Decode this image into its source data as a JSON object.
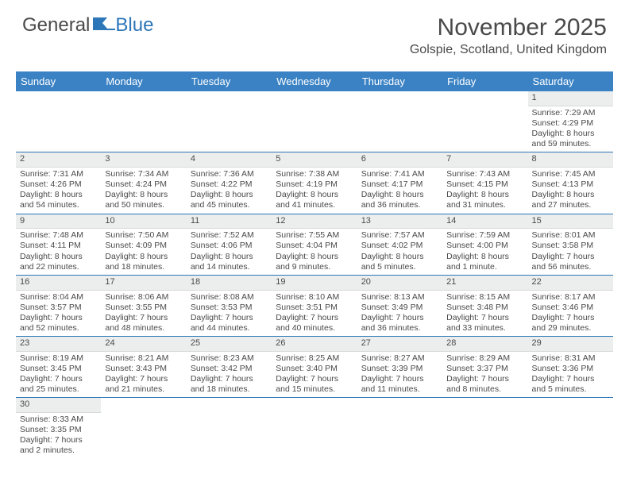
{
  "logo": {
    "text1": "General",
    "text2": "Blue"
  },
  "title": "November 2025",
  "location": "Golspie, Scotland, United Kingdom",
  "colors": {
    "header_bg": "#3a82c4",
    "header_text": "#ffffff",
    "daynum_bg": "#eceded",
    "separator": "#2d76b8",
    "body_text": "#4a4a4a",
    "logo_blue": "#2d76b8"
  },
  "day_headers": [
    "Sunday",
    "Monday",
    "Tuesday",
    "Wednesday",
    "Thursday",
    "Friday",
    "Saturday"
  ],
  "weeks": [
    [
      null,
      null,
      null,
      null,
      null,
      null,
      {
        "n": "1",
        "sr": "Sunrise: 7:29 AM",
        "ss": "Sunset: 4:29 PM",
        "d1": "Daylight: 8 hours",
        "d2": "and 59 minutes."
      }
    ],
    [
      {
        "n": "2",
        "sr": "Sunrise: 7:31 AM",
        "ss": "Sunset: 4:26 PM",
        "d1": "Daylight: 8 hours",
        "d2": "and 54 minutes."
      },
      {
        "n": "3",
        "sr": "Sunrise: 7:34 AM",
        "ss": "Sunset: 4:24 PM",
        "d1": "Daylight: 8 hours",
        "d2": "and 50 minutes."
      },
      {
        "n": "4",
        "sr": "Sunrise: 7:36 AM",
        "ss": "Sunset: 4:22 PM",
        "d1": "Daylight: 8 hours",
        "d2": "and 45 minutes."
      },
      {
        "n": "5",
        "sr": "Sunrise: 7:38 AM",
        "ss": "Sunset: 4:19 PM",
        "d1": "Daylight: 8 hours",
        "d2": "and 41 minutes."
      },
      {
        "n": "6",
        "sr": "Sunrise: 7:41 AM",
        "ss": "Sunset: 4:17 PM",
        "d1": "Daylight: 8 hours",
        "d2": "and 36 minutes."
      },
      {
        "n": "7",
        "sr": "Sunrise: 7:43 AM",
        "ss": "Sunset: 4:15 PM",
        "d1": "Daylight: 8 hours",
        "d2": "and 31 minutes."
      },
      {
        "n": "8",
        "sr": "Sunrise: 7:45 AM",
        "ss": "Sunset: 4:13 PM",
        "d1": "Daylight: 8 hours",
        "d2": "and 27 minutes."
      }
    ],
    [
      {
        "n": "9",
        "sr": "Sunrise: 7:48 AM",
        "ss": "Sunset: 4:11 PM",
        "d1": "Daylight: 8 hours",
        "d2": "and 22 minutes."
      },
      {
        "n": "10",
        "sr": "Sunrise: 7:50 AM",
        "ss": "Sunset: 4:09 PM",
        "d1": "Daylight: 8 hours",
        "d2": "and 18 minutes."
      },
      {
        "n": "11",
        "sr": "Sunrise: 7:52 AM",
        "ss": "Sunset: 4:06 PM",
        "d1": "Daylight: 8 hours",
        "d2": "and 14 minutes."
      },
      {
        "n": "12",
        "sr": "Sunrise: 7:55 AM",
        "ss": "Sunset: 4:04 PM",
        "d1": "Daylight: 8 hours",
        "d2": "and 9 minutes."
      },
      {
        "n": "13",
        "sr": "Sunrise: 7:57 AM",
        "ss": "Sunset: 4:02 PM",
        "d1": "Daylight: 8 hours",
        "d2": "and 5 minutes."
      },
      {
        "n": "14",
        "sr": "Sunrise: 7:59 AM",
        "ss": "Sunset: 4:00 PM",
        "d1": "Daylight: 8 hours",
        "d2": "and 1 minute."
      },
      {
        "n": "15",
        "sr": "Sunrise: 8:01 AM",
        "ss": "Sunset: 3:58 PM",
        "d1": "Daylight: 7 hours",
        "d2": "and 56 minutes."
      }
    ],
    [
      {
        "n": "16",
        "sr": "Sunrise: 8:04 AM",
        "ss": "Sunset: 3:57 PM",
        "d1": "Daylight: 7 hours",
        "d2": "and 52 minutes."
      },
      {
        "n": "17",
        "sr": "Sunrise: 8:06 AM",
        "ss": "Sunset: 3:55 PM",
        "d1": "Daylight: 7 hours",
        "d2": "and 48 minutes."
      },
      {
        "n": "18",
        "sr": "Sunrise: 8:08 AM",
        "ss": "Sunset: 3:53 PM",
        "d1": "Daylight: 7 hours",
        "d2": "and 44 minutes."
      },
      {
        "n": "19",
        "sr": "Sunrise: 8:10 AM",
        "ss": "Sunset: 3:51 PM",
        "d1": "Daylight: 7 hours",
        "d2": "and 40 minutes."
      },
      {
        "n": "20",
        "sr": "Sunrise: 8:13 AM",
        "ss": "Sunset: 3:49 PM",
        "d1": "Daylight: 7 hours",
        "d2": "and 36 minutes."
      },
      {
        "n": "21",
        "sr": "Sunrise: 8:15 AM",
        "ss": "Sunset: 3:48 PM",
        "d1": "Daylight: 7 hours",
        "d2": "and 33 minutes."
      },
      {
        "n": "22",
        "sr": "Sunrise: 8:17 AM",
        "ss": "Sunset: 3:46 PM",
        "d1": "Daylight: 7 hours",
        "d2": "and 29 minutes."
      }
    ],
    [
      {
        "n": "23",
        "sr": "Sunrise: 8:19 AM",
        "ss": "Sunset: 3:45 PM",
        "d1": "Daylight: 7 hours",
        "d2": "and 25 minutes."
      },
      {
        "n": "24",
        "sr": "Sunrise: 8:21 AM",
        "ss": "Sunset: 3:43 PM",
        "d1": "Daylight: 7 hours",
        "d2": "and 21 minutes."
      },
      {
        "n": "25",
        "sr": "Sunrise: 8:23 AM",
        "ss": "Sunset: 3:42 PM",
        "d1": "Daylight: 7 hours",
        "d2": "and 18 minutes."
      },
      {
        "n": "26",
        "sr": "Sunrise: 8:25 AM",
        "ss": "Sunset: 3:40 PM",
        "d1": "Daylight: 7 hours",
        "d2": "and 15 minutes."
      },
      {
        "n": "27",
        "sr": "Sunrise: 8:27 AM",
        "ss": "Sunset: 3:39 PM",
        "d1": "Daylight: 7 hours",
        "d2": "and 11 minutes."
      },
      {
        "n": "28",
        "sr": "Sunrise: 8:29 AM",
        "ss": "Sunset: 3:37 PM",
        "d1": "Daylight: 7 hours",
        "d2": "and 8 minutes."
      },
      {
        "n": "29",
        "sr": "Sunrise: 8:31 AM",
        "ss": "Sunset: 3:36 PM",
        "d1": "Daylight: 7 hours",
        "d2": "and 5 minutes."
      }
    ],
    [
      {
        "n": "30",
        "sr": "Sunrise: 8:33 AM",
        "ss": "Sunset: 3:35 PM",
        "d1": "Daylight: 7 hours",
        "d2": "and 2 minutes."
      },
      null,
      null,
      null,
      null,
      null,
      null
    ]
  ]
}
